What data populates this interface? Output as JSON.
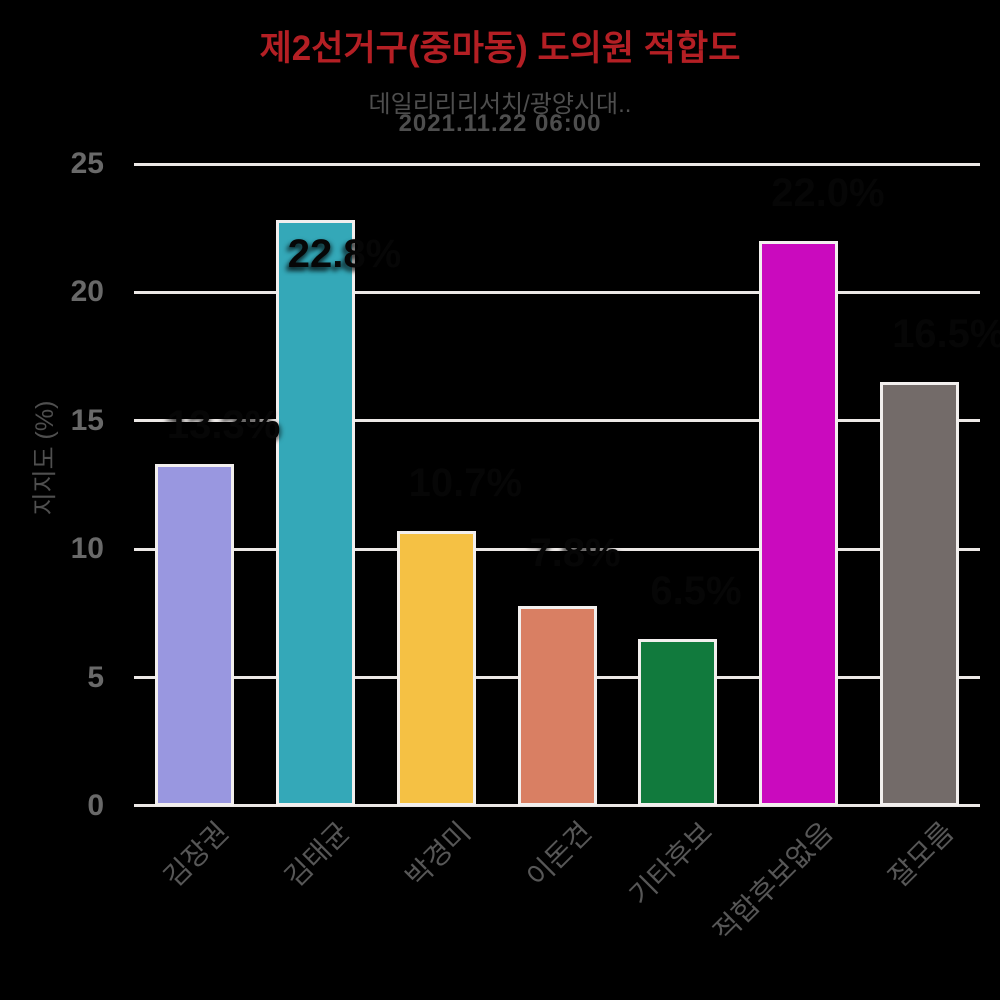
{
  "page": {
    "background_color": "#000000"
  },
  "chart_data": {
    "type": "bar",
    "title": "제2선거구(중마동) 도의원 적합도",
    "subtitle_source": "데일리리리서치/광양시대..",
    "subtitle_datetime": "2021.11.22 06:00",
    "ylabel": "지지도 (%)",
    "xlabel": "",
    "categories": [
      "김장권",
      "김태균",
      "박경미",
      "이돈견",
      "기타후보",
      "적합후보없음",
      "잘모름"
    ],
    "values": [
      13.3,
      22.8,
      10.7,
      7.8,
      6.5,
      22.0,
      16.5
    ],
    "value_labels": [
      "13.3%",
      "22.8%",
      "10.7%",
      "7.8%",
      "6.5%",
      "22.0%",
      "16.5%"
    ],
    "series": [
      {
        "name": "지지도",
        "values": [
          13.3,
          22.8,
          10.7,
          7.8,
          6.5,
          22.0,
          16.5
        ]
      }
    ],
    "bar_colors": [
      "#9997e0",
      "#34a8b8",
      "#f5c144",
      "#d97f63",
      "#117a3d",
      "#ca0abe",
      "#736b69"
    ],
    "yticks": [
      0,
      5,
      10,
      15,
      20,
      25
    ],
    "ylim": [
      0,
      25
    ],
    "grid": true,
    "legend": false,
    "colors": {
      "title": "#b41f24",
      "subtitle": "#4e4e4e",
      "gridline": "#ece8e6",
      "axis_line": "#ece8e6",
      "y_tick_label": "#696969",
      "y_axis_title": "#4f4f4f",
      "category_label": "#575757",
      "value_label": "#060606",
      "bar_border": "#f2efee"
    }
  }
}
